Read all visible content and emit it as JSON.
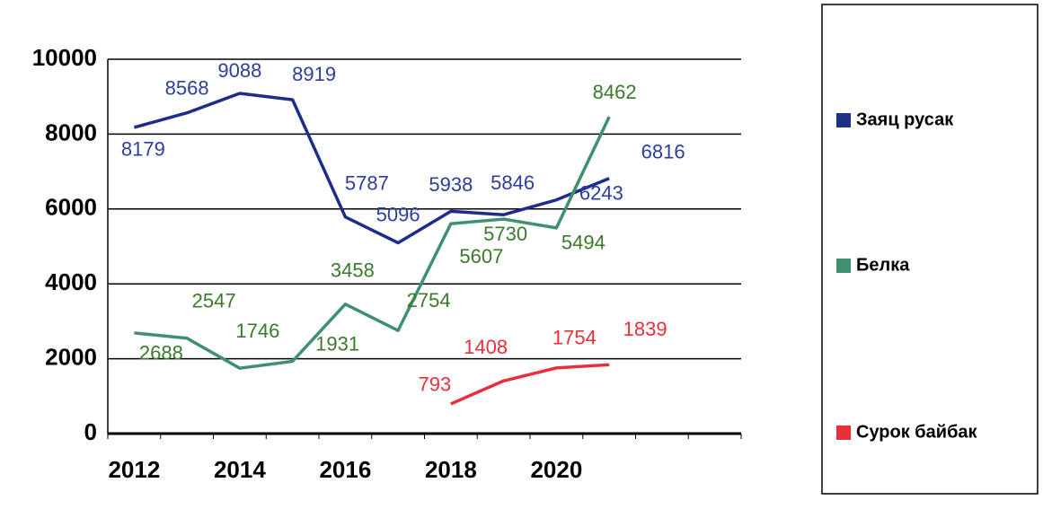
{
  "chart_data": {
    "type": "line",
    "x": [
      2012,
      2013,
      2014,
      2015,
      2016,
      2017,
      2018,
      2019,
      2020,
      2021
    ],
    "xlim": [
      2011.5,
      2023.5
    ],
    "xticks": [
      2012,
      2014,
      2016,
      2018,
      2020
    ],
    "ylim": [
      0,
      10000
    ],
    "yticks": [
      0,
      2000,
      4000,
      6000,
      8000,
      10000
    ],
    "grid": true,
    "legend": "right",
    "series": [
      {
        "name": "Заяц русак",
        "color": "#1f2d8a",
        "label_color": "#2b3e9e",
        "values": [
          8179,
          8568,
          9088,
          8919,
          5787,
          5096,
          5938,
          5846,
          6243,
          6816
        ]
      },
      {
        "name": "Белка",
        "color": "#3f9070",
        "label_color": "#3a7a2a",
        "values": [
          2688,
          2547,
          1746,
          1931,
          3458,
          2754,
          5607,
          5730,
          5494,
          8462
        ]
      },
      {
        "name": "Сурок байбак",
        "color": "#e8303a",
        "label_color": "#e8303a",
        "values": [
          null,
          null,
          null,
          null,
          null,
          null,
          793,
          1408,
          1754,
          1839
        ]
      }
    ]
  }
}
